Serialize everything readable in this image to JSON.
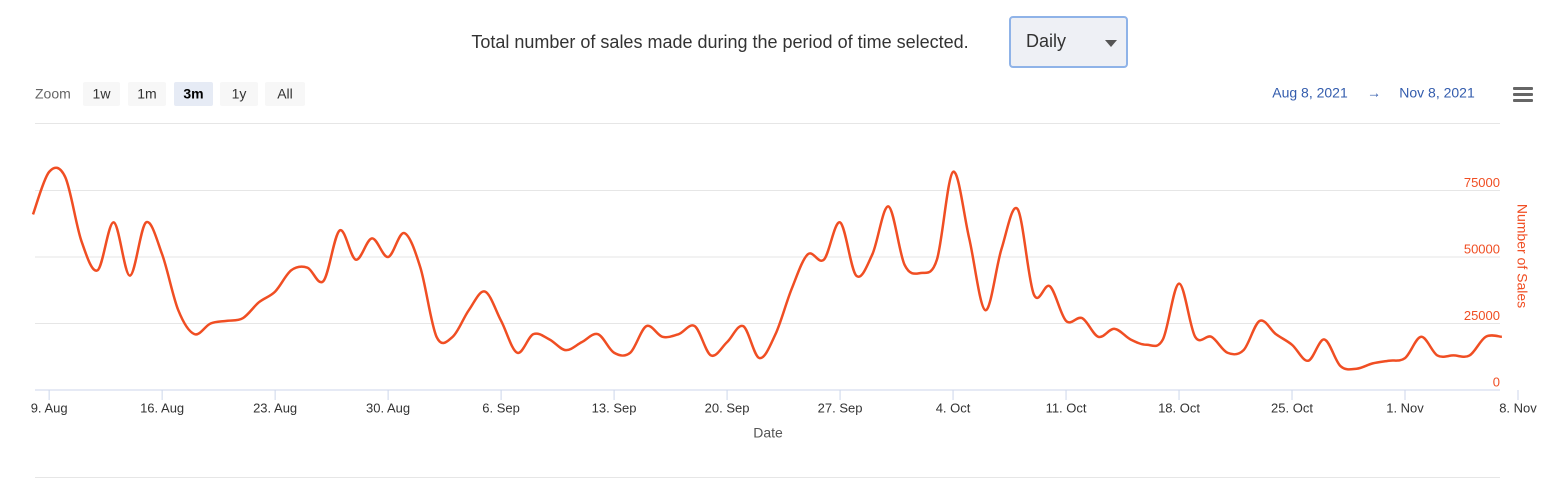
{
  "header": {
    "text": "Total number of sales made during the period of time selected.",
    "select": "Daily"
  },
  "chart_data": {
    "type": "line",
    "range_selector": {
      "label": "Zoom",
      "buttons": [
        "1w",
        "1m",
        "3m",
        "1y",
        "All"
      ],
      "selected": "3m",
      "from": "Aug 8, 2021",
      "separator": "→",
      "to": "Nov 8, 2021"
    },
    "x_label": "Date",
    "y_label": "Number of Sales",
    "xlim": [
      "2021-08-08",
      "2021-11-08"
    ],
    "xticks": [
      {
        "value": "2021-08-09",
        "label": "9. Aug"
      },
      {
        "value": "2021-08-16",
        "label": "16. Aug"
      },
      {
        "value": "2021-08-23",
        "label": "23. Aug"
      },
      {
        "value": "2021-08-30",
        "label": "30. Aug"
      },
      {
        "value": "2021-09-06",
        "label": "6. Sep"
      },
      {
        "value": "2021-09-13",
        "label": "13. Sep"
      },
      {
        "value": "2021-09-20",
        "label": "20. Sep"
      },
      {
        "value": "2021-09-27",
        "label": "27. Sep"
      },
      {
        "value": "2021-10-04",
        "label": "4. Oct"
      },
      {
        "value": "2021-10-11",
        "label": "11. Oct"
      },
      {
        "value": "2021-10-18",
        "label": "18. Oct"
      },
      {
        "value": "2021-10-25",
        "label": "25. Oct"
      },
      {
        "value": "2021-11-01",
        "label": "1. Nov"
      },
      {
        "value": "2021-11-08",
        "label": "8. Nov"
      }
    ],
    "ylim": [
      0,
      100000
    ],
    "yticks": [
      0,
      25000,
      50000,
      75000
    ],
    "grid": true,
    "x": [
      "2021-08-08",
      "2021-08-09",
      "2021-08-10",
      "2021-08-11",
      "2021-08-12",
      "2021-08-13",
      "2021-08-14",
      "2021-08-15",
      "2021-08-16",
      "2021-08-17",
      "2021-08-18",
      "2021-08-19",
      "2021-08-20",
      "2021-08-21",
      "2021-08-22",
      "2021-08-23",
      "2021-08-24",
      "2021-08-25",
      "2021-08-26",
      "2021-08-27",
      "2021-08-28",
      "2021-08-29",
      "2021-08-30",
      "2021-08-31",
      "2021-09-01",
      "2021-09-02",
      "2021-09-03",
      "2021-09-04",
      "2021-09-05",
      "2021-09-06",
      "2021-09-07",
      "2021-09-08",
      "2021-09-09",
      "2021-09-10",
      "2021-09-11",
      "2021-09-12",
      "2021-09-13",
      "2021-09-14",
      "2021-09-15",
      "2021-09-16",
      "2021-09-17",
      "2021-09-18",
      "2021-09-19",
      "2021-09-20",
      "2021-09-21",
      "2021-09-22",
      "2021-09-23",
      "2021-09-24",
      "2021-09-25",
      "2021-09-26",
      "2021-09-27",
      "2021-09-28",
      "2021-09-29",
      "2021-09-30",
      "2021-10-01",
      "2021-10-02",
      "2021-10-03",
      "2021-10-04",
      "2021-10-05",
      "2021-10-06",
      "2021-10-07",
      "2021-10-08",
      "2021-10-09",
      "2021-10-10",
      "2021-10-11",
      "2021-10-12",
      "2021-10-13",
      "2021-10-14",
      "2021-10-15",
      "2021-10-16",
      "2021-10-17",
      "2021-10-18",
      "2021-10-19",
      "2021-10-20",
      "2021-10-21",
      "2021-10-22",
      "2021-10-23",
      "2021-10-24",
      "2021-10-25",
      "2021-10-26",
      "2021-10-27",
      "2021-10-28",
      "2021-10-29",
      "2021-10-30",
      "2021-10-31",
      "2021-11-01",
      "2021-11-02",
      "2021-11-03",
      "2021-11-04",
      "2021-11-05",
      "2021-11-06",
      "2021-11-07"
    ],
    "series": [
      {
        "name": "Number of Sales",
        "color": "#f04e23",
        "values": [
          66000,
          82000,
          80000,
          56000,
          45000,
          63000,
          43000,
          63000,
          51000,
          30000,
          21000,
          25000,
          26000,
          27000,
          33000,
          37000,
          45000,
          46000,
          41000,
          60000,
          49000,
          57000,
          50000,
          59000,
          46000,
          20000,
          20000,
          30000,
          37000,
          26000,
          14000,
          21000,
          19000,
          15000,
          18000,
          21000,
          14000,
          14000,
          24000,
          20000,
          21000,
          24000,
          13000,
          18000,
          24000,
          12000,
          21000,
          38000,
          51000,
          49000,
          63000,
          43000,
          51000,
          69000,
          47000,
          44000,
          49000,
          82000,
          57000,
          30000,
          53000,
          68000,
          36000,
          39000,
          26000,
          27000,
          20000,
          23000,
          19000,
          17000,
          19000,
          40000,
          20000,
          20000,
          14000,
          15000,
          26000,
          21000,
          17000,
          11000,
          19000,
          9000,
          8000,
          10000,
          11000,
          12000,
          20000,
          13000,
          13000,
          13000,
          20000,
          20000
        ]
      }
    ]
  }
}
